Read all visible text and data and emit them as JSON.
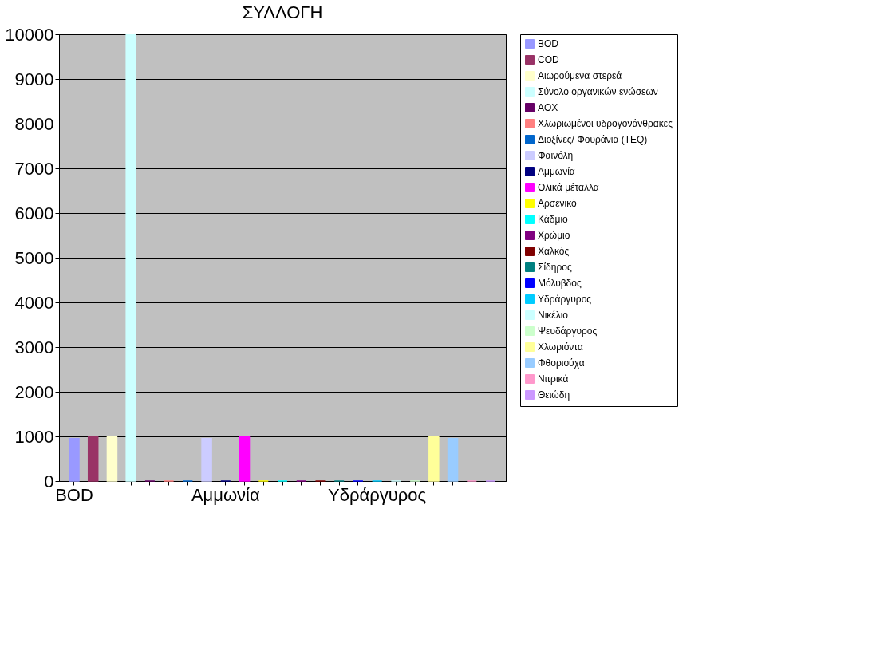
{
  "chart_data": {
    "type": "bar",
    "title": "ΣΥΛΛΟΓΗ",
    "categories": [
      "BOD",
      null,
      null,
      null,
      null,
      null,
      null,
      null,
      "Αμμωνία",
      null,
      null,
      null,
      null,
      null,
      null,
      null,
      "Υδράργυρος",
      null,
      null,
      null,
      null,
      null,
      null
    ],
    "ylim": [
      0,
      10000
    ],
    "yticks": [
      0,
      1000,
      2000,
      3000,
      4000,
      5000,
      6000,
      7000,
      8000,
      9000,
      10000
    ],
    "grid": "y",
    "legend": "right",
    "series": [
      {
        "name": "BOD",
        "color": "#9999ff",
        "values": [
          950,
          null,
          null,
          null,
          null,
          null,
          null,
          null,
          null,
          null,
          null,
          null,
          null,
          null,
          null,
          null,
          null,
          null,
          null,
          null,
          null,
          null,
          null
        ]
      },
      {
        "name": "COD",
        "color": "#993366",
        "values": [
          null,
          1000,
          null,
          null,
          null,
          null,
          null,
          null,
          null,
          null,
          null,
          null,
          null,
          null,
          null,
          null,
          null,
          null,
          null,
          null,
          null,
          null,
          null
        ]
      },
      {
        "name": "Αιωρούμενα στερεά",
        "color": "#ffffcc",
        "values": [
          null,
          null,
          1000,
          null,
          null,
          null,
          null,
          null,
          null,
          null,
          null,
          null,
          null,
          null,
          null,
          null,
          null,
          null,
          null,
          null,
          null,
          null,
          null
        ]
      },
      {
        "name": "Σύνολο οργανικών ενώσεων",
        "color": "#ccffff",
        "values": [
          null,
          null,
          null,
          10000,
          null,
          null,
          null,
          null,
          null,
          null,
          null,
          null,
          null,
          null,
          null,
          null,
          null,
          null,
          null,
          null,
          null,
          null,
          null
        ]
      },
      {
        "name": "AOX",
        "color": "#660066",
        "values": [
          null,
          null,
          null,
          null,
          0,
          null,
          null,
          null,
          null,
          null,
          null,
          null,
          null,
          null,
          null,
          null,
          null,
          null,
          null,
          null,
          null,
          null,
          null
        ]
      },
      {
        "name": "Χλωριωμένοι υδρογονάνθρακες",
        "color": "#ff8080",
        "values": [
          null,
          null,
          null,
          null,
          null,
          0,
          null,
          null,
          null,
          null,
          null,
          null,
          null,
          null,
          null,
          null,
          null,
          null,
          null,
          null,
          null,
          null,
          null
        ]
      },
      {
        "name": "Διοξίνες/ Φουράνια (TEQ)",
        "color": "#0066cc",
        "values": [
          null,
          null,
          null,
          null,
          null,
          null,
          0,
          null,
          null,
          null,
          null,
          null,
          null,
          null,
          null,
          null,
          null,
          null,
          null,
          null,
          null,
          null,
          null
        ]
      },
      {
        "name": "Φαινόλη",
        "color": "#ccccff",
        "values": [
          null,
          null,
          null,
          null,
          null,
          null,
          null,
          950,
          null,
          null,
          null,
          null,
          null,
          null,
          null,
          null,
          null,
          null,
          null,
          null,
          null,
          null,
          null
        ]
      },
      {
        "name": "Αμμωνία",
        "color": "#000080",
        "values": [
          null,
          null,
          null,
          null,
          null,
          null,
          null,
          null,
          0,
          null,
          null,
          null,
          null,
          null,
          null,
          null,
          null,
          null,
          null,
          null,
          null,
          null,
          null
        ]
      },
      {
        "name": "Ολικά μέταλλα",
        "color": "#ff00ff",
        "values": [
          null,
          null,
          null,
          null,
          null,
          null,
          null,
          null,
          null,
          1000,
          null,
          null,
          null,
          null,
          null,
          null,
          null,
          null,
          null,
          null,
          null,
          null,
          null
        ]
      },
      {
        "name": "Αρσενικό",
        "color": "#ffff00",
        "values": [
          null,
          null,
          null,
          null,
          null,
          null,
          null,
          null,
          null,
          null,
          0,
          null,
          null,
          null,
          null,
          null,
          null,
          null,
          null,
          null,
          null,
          null,
          null
        ]
      },
      {
        "name": "Κάδμιο",
        "color": "#00ffff",
        "values": [
          null,
          null,
          null,
          null,
          null,
          null,
          null,
          null,
          null,
          null,
          null,
          0,
          null,
          null,
          null,
          null,
          null,
          null,
          null,
          null,
          null,
          null,
          null
        ]
      },
      {
        "name": "Χρώμιο",
        "color": "#800080",
        "values": [
          null,
          null,
          null,
          null,
          null,
          null,
          null,
          null,
          null,
          null,
          null,
          null,
          0,
          null,
          null,
          null,
          null,
          null,
          null,
          null,
          null,
          null,
          null
        ]
      },
      {
        "name": "Χαλκός",
        "color": "#800000",
        "values": [
          null,
          null,
          null,
          null,
          null,
          null,
          null,
          null,
          null,
          null,
          null,
          null,
          null,
          0,
          null,
          null,
          null,
          null,
          null,
          null,
          null,
          null,
          null
        ]
      },
      {
        "name": "Σίδηρος",
        "color": "#008080",
        "values": [
          null,
          null,
          null,
          null,
          null,
          null,
          null,
          null,
          null,
          null,
          null,
          null,
          null,
          null,
          0,
          null,
          null,
          null,
          null,
          null,
          null,
          null,
          null
        ]
      },
      {
        "name": "Μόλυβδος",
        "color": "#0000ff",
        "values": [
          null,
          null,
          null,
          null,
          null,
          null,
          null,
          null,
          null,
          null,
          null,
          null,
          null,
          null,
          null,
          0,
          null,
          null,
          null,
          null,
          null,
          null,
          null
        ]
      },
      {
        "name": "Υδράργυρος",
        "color": "#00ccff",
        "values": [
          null,
          null,
          null,
          null,
          null,
          null,
          null,
          null,
          null,
          null,
          null,
          null,
          null,
          null,
          null,
          null,
          0,
          null,
          null,
          null,
          null,
          null,
          null
        ]
      },
      {
        "name": "Νικέλιο",
        "color": "#ccffff",
        "values": [
          null,
          null,
          null,
          null,
          null,
          null,
          null,
          null,
          null,
          null,
          null,
          null,
          null,
          null,
          null,
          null,
          null,
          0,
          null,
          null,
          null,
          null,
          null
        ]
      },
      {
        "name": "Ψευδάργυρος",
        "color": "#ccffcc",
        "values": [
          null,
          null,
          null,
          null,
          null,
          null,
          null,
          null,
          null,
          null,
          null,
          null,
          null,
          null,
          null,
          null,
          null,
          null,
          0,
          null,
          null,
          null,
          null
        ]
      },
      {
        "name": "Χλωριόντα",
        "color": "#ffff99",
        "values": [
          null,
          null,
          null,
          null,
          null,
          null,
          null,
          null,
          null,
          null,
          null,
          null,
          null,
          null,
          null,
          null,
          null,
          null,
          null,
          1000,
          null,
          null,
          null
        ]
      },
      {
        "name": "Φθοριούχα",
        "color": "#99ccff",
        "values": [
          null,
          null,
          null,
          null,
          null,
          null,
          null,
          null,
          null,
          null,
          null,
          null,
          null,
          null,
          null,
          null,
          null,
          null,
          null,
          null,
          950,
          null,
          null
        ]
      },
      {
        "name": "Νιτρικά",
        "color": "#ff99cc",
        "values": [
          null,
          null,
          null,
          null,
          null,
          null,
          null,
          null,
          null,
          null,
          null,
          null,
          null,
          null,
          null,
          null,
          null,
          null,
          null,
          null,
          null,
          0,
          null
        ]
      },
      {
        "name": "Θειώδη",
        "color": "#cc99ff",
        "values": [
          null,
          null,
          null,
          null,
          null,
          null,
          null,
          null,
          null,
          null,
          null,
          null,
          null,
          null,
          null,
          null,
          null,
          null,
          null,
          null,
          null,
          null,
          0
        ]
      }
    ]
  }
}
